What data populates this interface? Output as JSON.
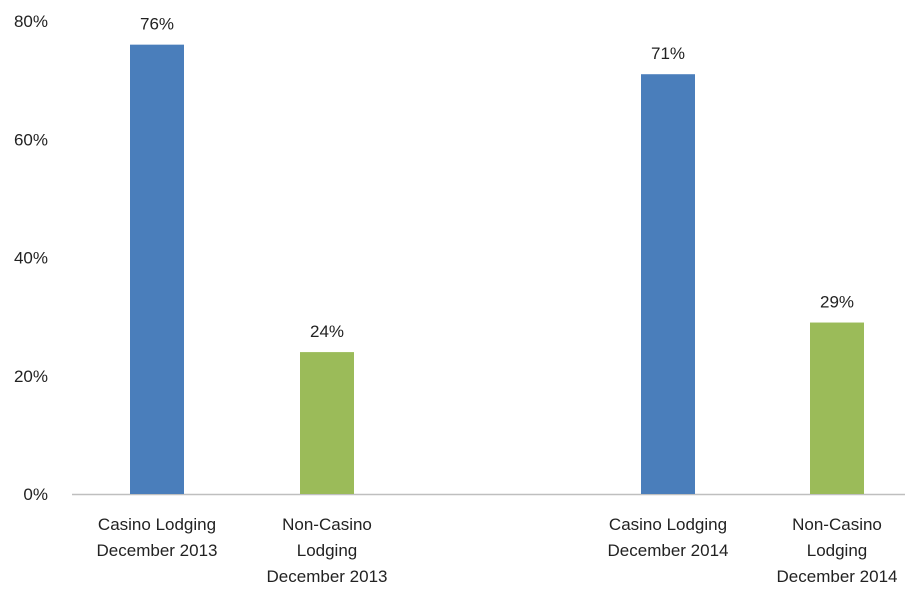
{
  "chart_data": {
    "type": "bar",
    "categories": [
      [
        "Casino Lodging",
        "December 2013"
      ],
      [
        "Non-Casino",
        "Lodging",
        "December 2013"
      ],
      [
        "Casino Lodging",
        "December 2014"
      ],
      [
        "Non-Casino",
        "Lodging",
        "December 2014"
      ]
    ],
    "values": [
      76,
      24,
      71,
      29
    ],
    "data_labels": [
      "76%",
      "24%",
      "71%",
      "29%"
    ],
    "bar_colors": [
      "#4a7ebb",
      "#9bbb59",
      "#4a7ebb",
      "#9bbb59"
    ],
    "ylim": [
      0,
      80
    ],
    "yticks": [
      {
        "value": 0,
        "label": "0%"
      },
      {
        "value": 20,
        "label": "20%"
      },
      {
        "value": 40,
        "label": "40%"
      },
      {
        "value": 60,
        "label": "60%"
      },
      {
        "value": 80,
        "label": "80%"
      }
    ],
    "grid": false,
    "axis_color": "#bfbfbf"
  }
}
